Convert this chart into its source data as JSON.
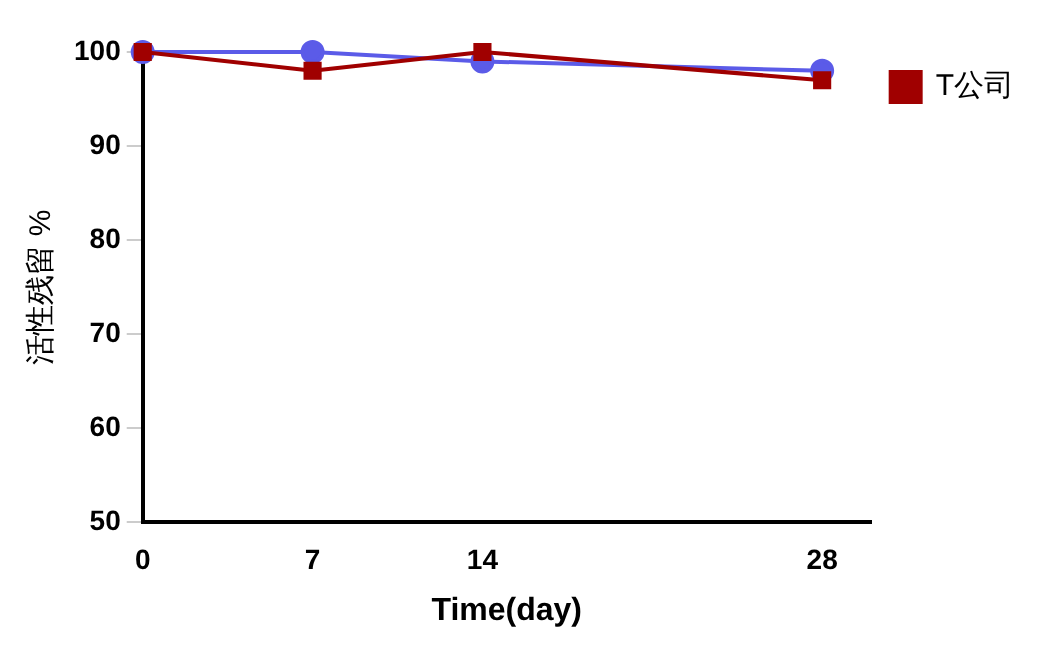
{
  "chart_data": {
    "type": "line",
    "xlabel": "Time(day)",
    "ylabel": "活性残留 %",
    "x": [
      0,
      7,
      14,
      28
    ],
    "xlim": [
      0,
      30
    ],
    "xticks": [
      0,
      7,
      14,
      28
    ],
    "ylim": [
      50,
      100
    ],
    "yticks": [
      50,
      60,
      70,
      80,
      90,
      100
    ],
    "grid": false,
    "legend": "top right",
    "series": [
      {
        "color": "#5b5be8",
        "marker": "circle",
        "values": [
          100,
          100,
          99,
          98
        ]
      },
      {
        "name": "T公司",
        "color": "#a00000",
        "marker": "square",
        "values": [
          100,
          98,
          100,
          97
        ]
      }
    ]
  }
}
